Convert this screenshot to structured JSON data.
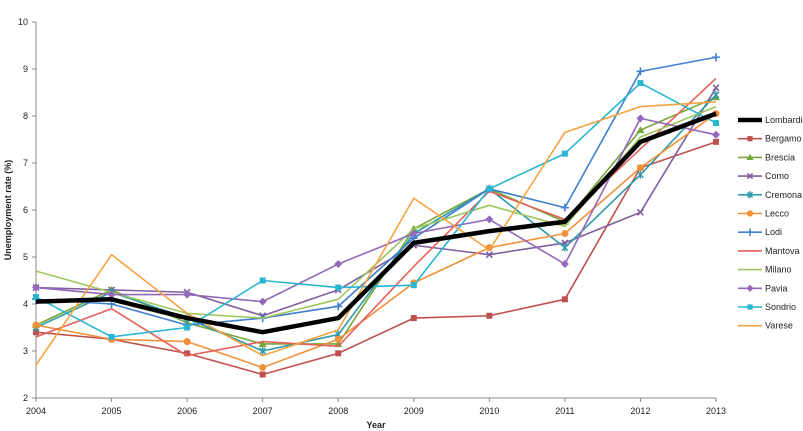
{
  "chart_data": {
    "type": "line",
    "title": "",
    "xlabel": "Year",
    "ylabel": "Unemployment rate (%)",
    "x": [
      2004,
      2005,
      2006,
      2007,
      2008,
      2009,
      2010,
      2011,
      2012,
      2013
    ],
    "ylim": [
      2,
      10
    ],
    "yticks": [
      2,
      3,
      4,
      5,
      6,
      7,
      8,
      9,
      10
    ],
    "grid": false,
    "legend_position": "right",
    "series": [
      {
        "name": "Lombardia",
        "color": "#000000",
        "marker": "none",
        "values": [
          4.05,
          4.1,
          3.7,
          3.4,
          3.7,
          5.3,
          5.55,
          5.75,
          7.45,
          8.05
        ]
      },
      {
        "name": "Bergamo",
        "color": "#c0504d",
        "marker": "square",
        "values": [
          3.4,
          3.25,
          2.95,
          2.5,
          2.95,
          3.7,
          3.75,
          4.1,
          6.9,
          7.45
        ]
      },
      {
        "name": "Brescia",
        "color": "#77a63a",
        "marker": "triangle",
        "values": [
          3.55,
          4.3,
          3.6,
          3.15,
          3.15,
          5.6,
          6.45,
          5.75,
          7.7,
          8.4
        ]
      },
      {
        "name": "Como",
        "color": "#7f5fa0",
        "marker": "x",
        "values": [
          4.35,
          4.3,
          4.25,
          3.75,
          4.3,
          5.25,
          5.05,
          5.3,
          5.95,
          8.6
        ]
      },
      {
        "name": "Cremona",
        "color": "#2e9aa8",
        "marker": "star",
        "values": [
          3.5,
          4.25,
          3.7,
          3.0,
          3.35,
          5.5,
          6.45,
          5.2,
          6.75,
          8.45
        ]
      },
      {
        "name": "Lecco",
        "color": "#f0913a",
        "marker": "circle",
        "values": [
          3.55,
          3.25,
          3.2,
          2.65,
          3.25,
          4.45,
          5.2,
          5.5,
          6.9,
          8.05
        ]
      },
      {
        "name": "Lodi",
        "color": "#3f7fd0",
        "marker": "plus",
        "values": [
          4.1,
          4.0,
          3.55,
          3.7,
          3.95,
          5.4,
          6.45,
          6.05,
          8.95,
          9.25
        ]
      },
      {
        "name": "Mantova",
        "color": "#e6605a",
        "marker": "none",
        "values": [
          3.3,
          3.9,
          2.9,
          3.2,
          3.1,
          4.8,
          6.4,
          5.8,
          7.3,
          8.8
        ]
      },
      {
        "name": "Milano",
        "color": "#9cc75a",
        "marker": "none",
        "values": [
          4.7,
          4.25,
          3.8,
          3.7,
          4.1,
          5.6,
          6.1,
          5.65,
          7.55,
          8.2
        ]
      },
      {
        "name": "Pavia",
        "color": "#9368b8",
        "marker": "diamond",
        "values": [
          4.35,
          4.2,
          4.2,
          4.05,
          4.85,
          5.5,
          5.8,
          4.85,
          7.95,
          7.6
        ]
      },
      {
        "name": "Sondrio",
        "color": "#29b6d0",
        "marker": "square",
        "values": [
          4.15,
          3.3,
          3.5,
          4.5,
          4.35,
          4.4,
          6.45,
          7.2,
          8.7,
          7.85
        ]
      },
      {
        "name": "Varese",
        "color": "#f5a340",
        "marker": "none",
        "values": [
          2.7,
          5.05,
          3.8,
          2.9,
          3.45,
          6.25,
          5.15,
          7.65,
          8.2,
          8.3
        ]
      }
    ]
  }
}
